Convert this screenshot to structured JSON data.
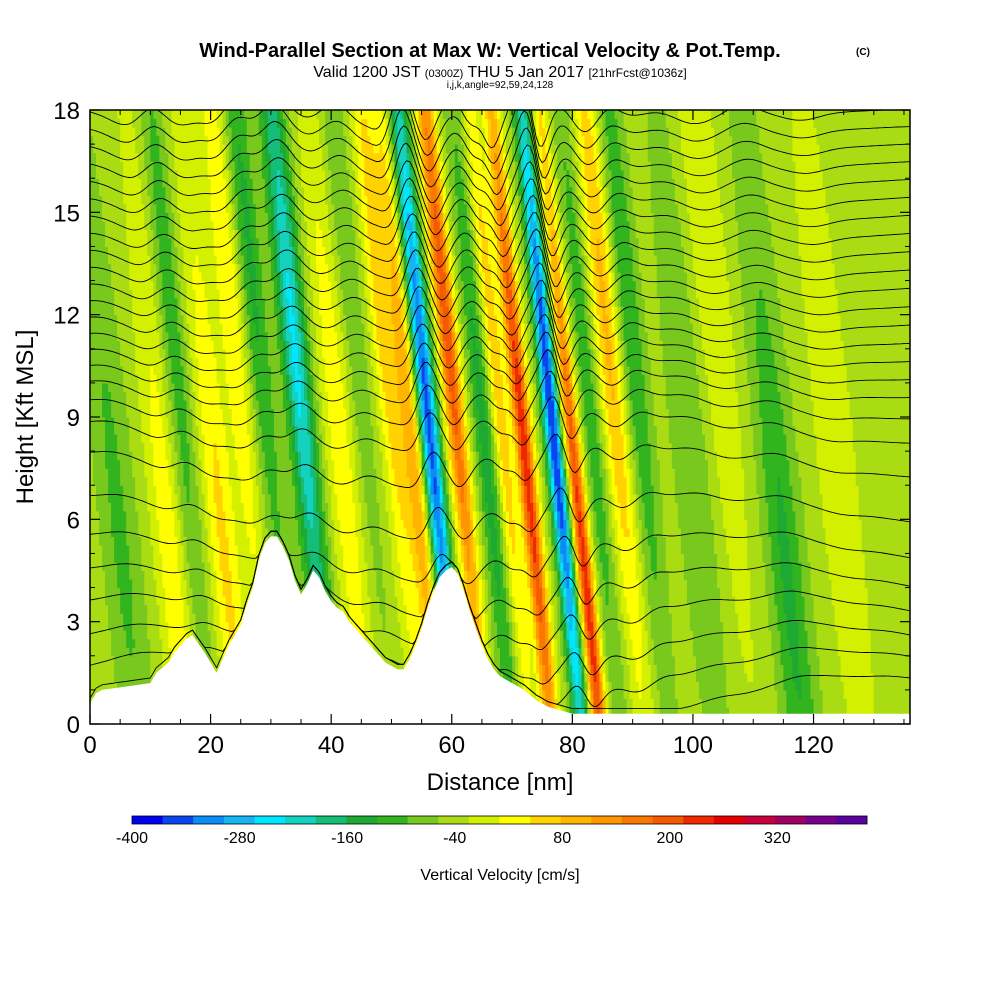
{
  "chart_data": {
    "type": "heatmap",
    "title": "Wind-Parallel Section at Max W: Vertical Velocity & Pot.Temp.",
    "title_mark": "(C)",
    "subtitle_parts": [
      "Valid 1200 JST",
      "(0300Z)",
      "THU 5 Jan 2017",
      "[21hrFcst@1036z]"
    ],
    "subtitle_small": "i,j,k,angle=92,59,24,128",
    "xlabel": "Distance [nm]",
    "ylabel": "Height [Kft MSL]",
    "xlim": [
      0,
      136
    ],
    "ylim": [
      0,
      18
    ],
    "x_ticks": [
      0,
      20,
      40,
      60,
      80,
      100,
      120
    ],
    "y_ticks": [
      0,
      3,
      6,
      9,
      12,
      15,
      18
    ],
    "terrain": {
      "x": [
        0,
        1,
        2,
        10,
        11,
        13,
        14,
        16,
        17,
        19,
        20,
        21,
        22,
        23,
        24,
        25,
        26,
        27,
        28,
        29,
        30,
        31,
        32,
        33,
        34,
        35,
        36,
        37,
        38,
        39,
        40,
        41,
        42,
        43,
        44,
        45,
        46,
        47,
        48,
        49,
        50,
        51,
        52,
        53,
        54,
        55,
        56,
        57,
        58,
        59,
        60,
        61,
        62,
        63,
        64,
        65,
        66,
        67,
        68,
        70,
        72,
        74,
        76,
        80,
        136
      ],
      "h": [
        0.6,
        0.9,
        1.0,
        1.2,
        1.5,
        1.8,
        2.1,
        2.5,
        2.6,
        2.1,
        1.8,
        1.5,
        1.9,
        2.3,
        2.6,
        2.9,
        3.5,
        4.0,
        4.8,
        5.3,
        5.5,
        5.5,
        5.2,
        4.8,
        4.2,
        3.8,
        4.1,
        4.5,
        4.3,
        3.9,
        3.6,
        3.4,
        3.3,
        3.0,
        2.8,
        2.6,
        2.4,
        2.2,
        2.0,
        1.8,
        1.7,
        1.6,
        1.6,
        1.9,
        2.3,
        2.8,
        3.4,
        3.9,
        4.3,
        4.5,
        4.6,
        4.4,
        3.9,
        3.3,
        2.8,
        2.3,
        1.9,
        1.6,
        1.4,
        1.2,
        1.0,
        0.7,
        0.5,
        0.3,
        0.3
      ]
    },
    "w_features": [
      {
        "x": 8,
        "h": 6,
        "w": 3,
        "v": -70
      },
      {
        "x": 16,
        "h": 4,
        "w": 2.5,
        "v": 90
      },
      {
        "x": 20,
        "h": 12,
        "w": 2,
        "v": -90
      },
      {
        "x": 25,
        "h": 5,
        "w": 2.5,
        "v": 110
      },
      {
        "x": 30,
        "h": 13,
        "w": 2,
        "v": 100
      },
      {
        "x": 34,
        "h": 14,
        "w": 2,
        "v": -110
      },
      {
        "x": 40,
        "h": 11,
        "w": 2.2,
        "v": -230
      },
      {
        "x": 46,
        "h": 8,
        "w": 2.5,
        "v": 90
      },
      {
        "x": 50,
        "h": 14,
        "w": 2,
        "v": -60
      },
      {
        "x": 55,
        "h": 12,
        "w": 2,
        "v": 130
      },
      {
        "x": 58,
        "h": 8,
        "w": 1.6,
        "v": 170
      },
      {
        "x": 61,
        "h": 9,
        "w": 1.6,
        "v": -360
      },
      {
        "x": 65.5,
        "h": 12,
        "w": 1.6,
        "v": 290
      },
      {
        "x": 70,
        "h": 8,
        "w": 1.7,
        "v": -120
      },
      {
        "x": 73,
        "h": 10,
        "w": 1.5,
        "v": 130
      },
      {
        "x": 76.5,
        "h": 8,
        "w": 1.4,
        "v": 330
      },
      {
        "x": 81.5,
        "h": 9,
        "w": 1.4,
        "v": -380
      },
      {
        "x": 84.5,
        "h": 4,
        "w": 1.3,
        "v": 330
      },
      {
        "x": 88,
        "h": 10,
        "w": 1.6,
        "v": -90
      },
      {
        "x": 92,
        "h": 12,
        "w": 2,
        "v": 150
      },
      {
        "x": 96,
        "h": 12,
        "w": 2,
        "v": -100
      },
      {
        "x": 104,
        "h": 8,
        "w": 3,
        "v": -60
      },
      {
        "x": 110,
        "h": 14,
        "w": 3,
        "v": 60
      },
      {
        "x": 118,
        "h": 4,
        "w": 3,
        "v": -110
      },
      {
        "x": 128,
        "h": 8,
        "w": 3,
        "v": 60
      }
    ],
    "theta_levels_kft": [
      0.6,
      1.4,
      2.2,
      3.1,
      4.0,
      5.0,
      6.2,
      7.6,
      8.6,
      9.3,
      9.9,
      10.4,
      10.9,
      11.4,
      11.9,
      12.4,
      12.9,
      13.4,
      13.9,
      14.4,
      14.9,
      15.4,
      15.9,
      16.4,
      16.9,
      17.4,
      17.9
    ],
    "colorbar": {
      "title": "Vertical Velocity [cm/s]",
      "labels": [
        "-400",
        "-280",
        "-160",
        "-40",
        "80",
        "200",
        "320"
      ],
      "min": -400,
      "max": 420,
      "step": 40,
      "colors": [
        "#0000f0",
        "#0a46f0",
        "#0a8cf5",
        "#14b4f5",
        "#00e6ff",
        "#14d2be",
        "#14be78",
        "#1eaa32",
        "#32b41e",
        "#78c81e",
        "#aadc14",
        "#d2f000",
        "#ffff00",
        "#ffd200",
        "#ffb400",
        "#ff9600",
        "#fa7800",
        "#f55a00",
        "#f02800",
        "#e60000",
        "#c8003c",
        "#a00064",
        "#78008c",
        "#5a00a0"
      ]
    }
  }
}
